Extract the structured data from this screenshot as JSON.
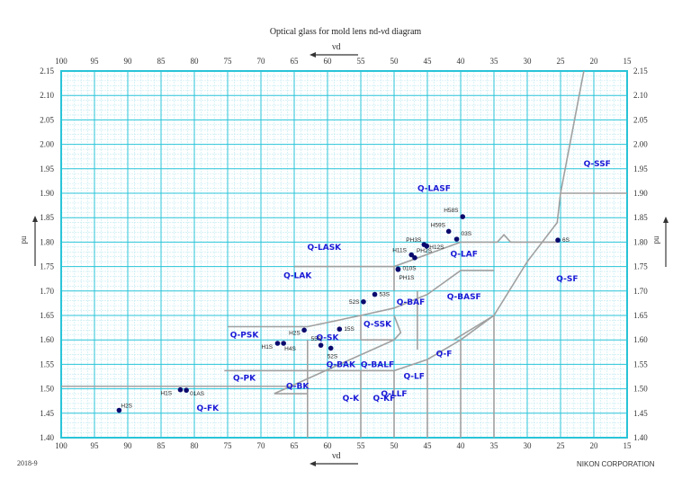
{
  "page": {
    "title": "Optical glass for mold lens  nd-νd  diagram",
    "date": "2018-9",
    "company": "NIKON CORPORATION",
    "x_axis_symbol": "νd",
    "y_axis_symbol": "nd"
  },
  "chart_data": {
    "type": "scatter",
    "title": "Optical glass for mold lens nd-νd diagram",
    "xlabel": "νd",
    "ylabel": "nd",
    "xlim": [
      100,
      15
    ],
    "ylim": [
      1.4,
      2.15
    ],
    "x_reversed": true,
    "grid": true,
    "x_ticks": [
      100,
      95,
      90,
      85,
      80,
      75,
      70,
      65,
      60,
      55,
      50,
      45,
      40,
      35,
      30,
      25,
      20,
      15
    ],
    "y_ticks": [
      1.4,
      1.45,
      1.5,
      1.55,
      1.6,
      1.65,
      1.7,
      1.75,
      1.8,
      1.85,
      1.9,
      1.95,
      2.0,
      2.05,
      2.1,
      2.15
    ],
    "x_tick_labels": [
      "100",
      "95",
      "90",
      "85",
      "80",
      "75",
      "70",
      "65",
      "60",
      "55",
      "50",
      "45",
      "40",
      "35",
      "30",
      "25",
      "20",
      "15"
    ],
    "y_tick_labels": [
      "1.40",
      "1.45",
      "1.50",
      "1.55",
      "1.60",
      "1.65",
      "1.70",
      "1.75",
      "1.80",
      "1.85",
      "1.90",
      "1.95",
      "2.00",
      "2.05",
      "2.10",
      "2.15"
    ],
    "points": [
      {
        "label": "H2S",
        "x": 91.3,
        "y": 1.456,
        "lx": 2,
        "ly": -3
      },
      {
        "label": "H1S",
        "x": 82.1,
        "y": 1.498,
        "lx": -22,
        "ly": 6
      },
      {
        "label": "01AS",
        "x": 81.2,
        "y": 1.497,
        "lx": 4,
        "ly": 6
      },
      {
        "label": "H1S",
        "x": 67.5,
        "y": 1.593,
        "lx": -18,
        "ly": 6
      },
      {
        "label": "H4S",
        "x": 66.6,
        "y": 1.593,
        "lx": 1,
        "ly": 8
      },
      {
        "label": "H2S",
        "x": 63.5,
        "y": 1.62,
        "lx": -17,
        "ly": 5
      },
      {
        "label": "15S",
        "x": 58.2,
        "y": 1.622,
        "lx": 5,
        "ly": 2
      },
      {
        "label": "55S",
        "x": 61.0,
        "y": 1.589,
        "lx": -11,
        "ly": -5
      },
      {
        "label": "52S",
        "x": 59.5,
        "y": 1.583,
        "lx": -4,
        "ly": 11
      },
      {
        "label": "52S",
        "x": 54.6,
        "y": 1.678,
        "lx": -16,
        "ly": 2
      },
      {
        "label": "53S",
        "x": 52.9,
        "y": 1.693,
        "lx": 5,
        "ly": 2
      },
      {
        "label": "010S",
        "x": 49.4,
        "y": 1.745,
        "lx": 5,
        "ly": 1
      },
      {
        "label": "PH1S",
        "x": 49.4,
        "y": 1.744,
        "lx": 1,
        "ly": 11
      },
      {
        "label": "H11S",
        "x": 47.4,
        "y": 1.774,
        "lx": -21,
        "ly": -3
      },
      {
        "label": "PH2S",
        "x": 46.9,
        "y": 1.768,
        "lx": 2,
        "ly": -6
      },
      {
        "label": "PH3S",
        "x": 45.5,
        "y": 1.795,
        "lx": -20,
        "ly": -3
      },
      {
        "label": "H12S",
        "x": 45.1,
        "y": 1.792,
        "lx": 3,
        "ly": 3
      },
      {
        "label": "H59S",
        "x": 41.8,
        "y": 1.822,
        "lx": -20,
        "ly": -5
      },
      {
        "label": "03S",
        "x": 40.6,
        "y": 1.806,
        "lx": 5,
        "ly": -4
      },
      {
        "label": "H58S",
        "x": 39.7,
        "y": 1.852,
        "lx": -21,
        "ly": -5
      },
      {
        "label": "6S",
        "x": 25.4,
        "y": 1.804,
        "lx": 5,
        "ly": 2
      }
    ],
    "regions": [
      {
        "label": "Q-SSF",
        "x": 19.5,
        "y": 1.955
      },
      {
        "label": "Q-LASF",
        "x": 44,
        "y": 1.905
      },
      {
        "label": "Q-LAF",
        "x": 39.5,
        "y": 1.77
      },
      {
        "label": "Q-LASK",
        "x": 60.5,
        "y": 1.784
      },
      {
        "label": "Q-LAK",
        "x": 64.5,
        "y": 1.726
      },
      {
        "label": "Q-BASF",
        "x": 39.5,
        "y": 1.683
      },
      {
        "label": "Q-SF",
        "x": 24,
        "y": 1.72
      },
      {
        "label": "Q-BAF",
        "x": 47.5,
        "y": 1.672
      },
      {
        "label": "Q-SSK",
        "x": 52.5,
        "y": 1.627
      },
      {
        "label": "Q-PSK",
        "x": 72.5,
        "y": 1.605
      },
      {
        "label": "Q-SK",
        "x": 60,
        "y": 1.599
      },
      {
        "label": "Q-F",
        "x": 42.5,
        "y": 1.566
      },
      {
        "label": "Q-BAK",
        "x": 58,
        "y": 1.544
      },
      {
        "label": "Q-BALF",
        "x": 52.5,
        "y": 1.544
      },
      {
        "label": "Q-PK",
        "x": 72.5,
        "y": 1.517
      },
      {
        "label": "Q-LF",
        "x": 47,
        "y": 1.52
      },
      {
        "label": "Q-BK",
        "x": 64.5,
        "y": 1.5
      },
      {
        "label": "Q-LLF",
        "x": 50,
        "y": 1.485
      },
      {
        "label": "Q-K",
        "x": 56.5,
        "y": 1.475
      },
      {
        "label": "Q-KF",
        "x": 51.5,
        "y": 1.475
      },
      {
        "label": "Q-FK",
        "x": 78,
        "y": 1.455
      }
    ],
    "boundaries": [
      [
        [
          100,
          1.505
        ],
        [
          65,
          1.505
        ]
      ],
      [
        [
          75.5,
          1.537
        ],
        [
          50,
          1.537
        ]
      ],
      [
        [
          68,
          1.49
        ],
        [
          63,
          1.49
        ]
      ],
      [
        [
          68,
          1.49
        ],
        [
          50,
          1.6
        ]
      ],
      [
        [
          63,
          1.4
        ],
        [
          63,
          1.6
        ]
      ],
      [
        [
          75,
          1.627
        ],
        [
          63,
          1.627
        ],
        [
          55,
          1.65
        ],
        [
          50,
          1.665
        ],
        [
          45,
          1.693
        ],
        [
          40,
          1.742
        ],
        [
          35,
          1.742
        ]
      ],
      [
        [
          55,
          1.6
        ],
        [
          55,
          1.65
        ]
      ],
      [
        [
          55,
          1.6
        ],
        [
          50,
          1.6
        ],
        [
          49,
          1.615
        ],
        [
          50,
          1.65
        ]
      ],
      [
        [
          55,
          1.4
        ],
        [
          55,
          1.537
        ]
      ],
      [
        [
          50,
          1.4
        ],
        [
          50,
          1.537
        ]
      ],
      [
        [
          50,
          1.537
        ],
        [
          45,
          1.56
        ],
        [
          40,
          1.6
        ]
      ],
      [
        [
          45,
          1.4
        ],
        [
          45,
          1.56
        ]
      ],
      [
        [
          40,
          1.4
        ],
        [
          40,
          1.6
        ]
      ],
      [
        [
          35,
          1.4
        ],
        [
          35,
          1.65
        ]
      ],
      [
        [
          46.5,
          1.58
        ],
        [
          46.5,
          1.7
        ]
      ],
      [
        [
          40,
          1.6
        ],
        [
          35,
          1.65
        ]
      ],
      [
        [
          35,
          1.65
        ],
        [
          30,
          1.76
        ],
        [
          25.5,
          1.84
        ],
        [
          25,
          1.9
        ],
        [
          21.5,
          2.15
        ]
      ],
      [
        [
          25,
          1.9
        ],
        [
          15,
          1.9
        ]
      ],
      [
        [
          65,
          1.75
        ],
        [
          50,
          1.75
        ]
      ],
      [
        [
          50,
          1.7
        ],
        [
          50,
          1.75
        ],
        [
          40,
          1.8
        ],
        [
          34.5,
          1.8
        ],
        [
          33.5,
          1.815
        ],
        [
          32.5,
          1.8
        ],
        [
          25.5,
          1.8
        ]
      ],
      [
        [
          41,
          1.6
        ],
        [
          35,
          1.65
        ]
      ]
    ]
  },
  "colors": {
    "grid_major": "#29c4d8",
    "grid_minor": "#bfeaf2",
    "boundary": "#a0a0a0",
    "point": "#0a0a6e",
    "region_label": "#1a1ad6"
  }
}
